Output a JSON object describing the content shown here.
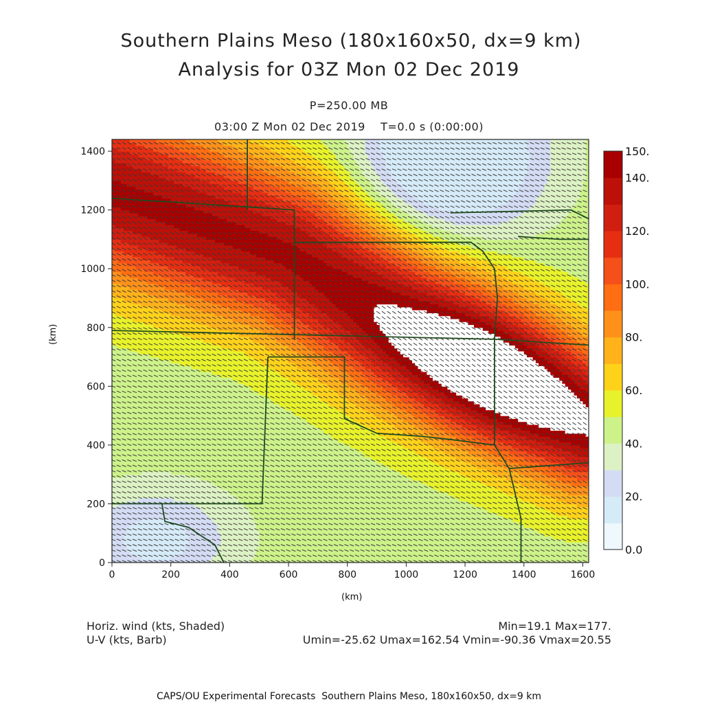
{
  "title_line1": "Southern Plains Meso (180x160x50, dx=9 km)",
  "title_line2": "Analysis for 03Z Mon 02 Dec 2019",
  "pressure_label": "P=250.00 MB",
  "time_label": "03:00 Z Mon 02 Dec 2019    T=0.0 s (0:00:00)",
  "footer": {
    "left_line1": "Horiz. wind (kts, Shaded)",
    "left_line2": "U-V (kts, Barb)",
    "right_line1": "Min=19.1 Max=177.",
    "right_line2": "Umin=-25.62 Umax=162.54 Vmin=-90.36 Vmax=20.55",
    "credit": "CAPS/OU Experimental Forecasts  Southern Plains Meso, 180x160x50, dx=9 km"
  },
  "colors": {
    "state_border": "#1f4a1f",
    "barb": "#3a3a3a"
  },
  "chart_data": {
    "type": "heatmap",
    "variable": "Horiz. wind (kts, Shaded)",
    "overlay": "U-V (kts, Barb)",
    "xlabel": "(km)",
    "ylabel": "(km)",
    "xlim": [
      0,
      1620
    ],
    "ylim": [
      0,
      1440
    ],
    "x_ticks": [
      0,
      200,
      400,
      600,
      800,
      1000,
      1200,
      1400,
      1600
    ],
    "y_ticks": [
      0,
      200,
      400,
      600,
      800,
      1000,
      1200,
      1400
    ],
    "field_min": 19.1,
    "field_max": 177,
    "jet_axis_km": [
      [
        0,
        1260
      ],
      [
        600,
        1050
      ],
      [
        1000,
        800
      ],
      [
        1300,
        640
      ],
      [
        1620,
        470
      ]
    ],
    "colorbar": {
      "tick_labels": [
        "0.0",
        "20.",
        "40.",
        "60.",
        "80.",
        "100.",
        "120.",
        "140.",
        "150."
      ],
      "levels": [
        0,
        10,
        20,
        30,
        40,
        50,
        60,
        70,
        80,
        90,
        100,
        110,
        120,
        130,
        140,
        150
      ],
      "colors": [
        "#eef8fd",
        "#d6ebf8",
        "#d4dcf4",
        "#ddf2c4",
        "#cdf28a",
        "#e8f22a",
        "#ffd21a",
        "#ffb21a",
        "#ff911a",
        "#ff6e12",
        "#f5501a",
        "#e62e12",
        "#d01e10",
        "#bc1008",
        "#a80000",
        "#ffffff"
      ]
    }
  }
}
